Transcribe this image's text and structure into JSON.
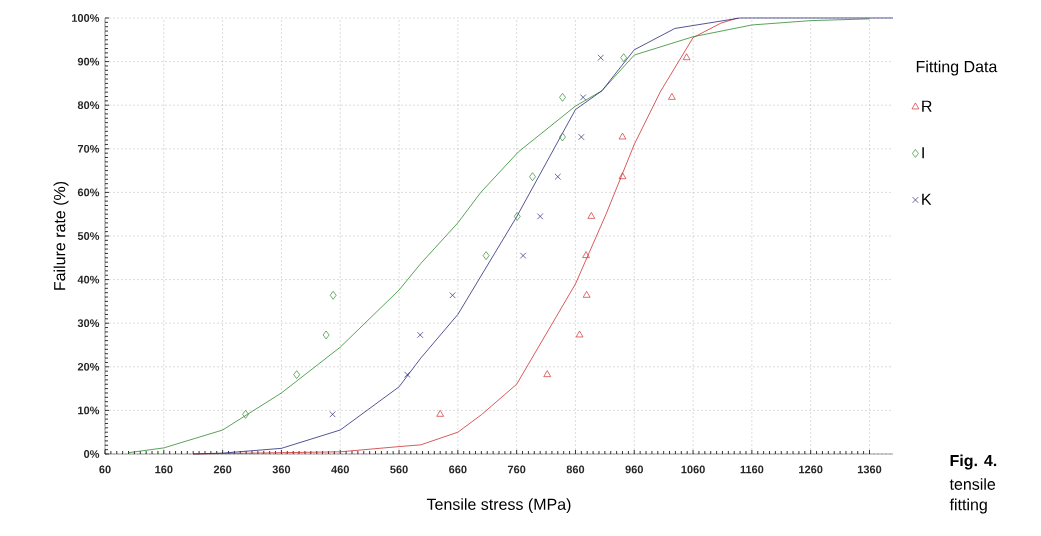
{
  "chart_data": {
    "type": "scatter",
    "xlabel": "Tensile stress (MPa)",
    "ylabel": "Failure rate (%)",
    "legend_title": "Fitting Data",
    "xlim": [
      60,
      1400
    ],
    "xticks": [
      60,
      160,
      260,
      360,
      460,
      560,
      660,
      760,
      860,
      960,
      1060,
      1160,
      1260,
      1360
    ],
    "ylim": [
      0,
      100
    ],
    "yticks": [
      {
        "value": 0,
        "label": "0%"
      },
      {
        "value": 10,
        "label": "10%"
      },
      {
        "value": 20,
        "label": "20%"
      },
      {
        "value": 30,
        "label": "30%"
      },
      {
        "value": 40,
        "label": "40%"
      },
      {
        "value": 50,
        "label": "50%"
      },
      {
        "value": 60,
        "label": "60%"
      },
      {
        "value": 70,
        "label": "70%"
      },
      {
        "value": 80,
        "label": "80%"
      },
      {
        "value": 90,
        "label": "90%"
      },
      {
        "value": 100,
        "label": "100%"
      }
    ],
    "grid": true,
    "legend": "right",
    "line_style": "solid",
    "series": [
      {
        "type": "line",
        "color": "#d03030",
        "marker": "none",
        "x": [
          210,
          460,
          560,
          597,
          660,
          700,
          760,
          860,
          912,
          960,
          1004,
          1060,
          1107,
          1136
        ],
        "values": [
          0,
          0.5,
          1.7,
          2.1,
          5,
          9,
          16,
          39,
          55,
          71,
          83,
          95.5,
          98.8,
          100
        ]
      },
      {
        "type": "line",
        "color": "#2e8b2e",
        "marker": "none",
        "x": [
          100,
          160,
          260,
          360,
          460,
          560,
          597,
          660,
          699,
          763,
          860,
          905,
          960,
          1060,
          1160,
          1260,
          1360
        ],
        "values": [
          0.3,
          1.4,
          5.5,
          14,
          24.5,
          37.6,
          43.7,
          53,
          60,
          69.3,
          79.8,
          83.3,
          91.5,
          95.7,
          98.4,
          99.4,
          99.8
        ]
      },
      {
        "type": "line",
        "color": "#2a2a7a",
        "marker": "none",
        "x": [
          210,
          260,
          360,
          460,
          560,
          597,
          660,
          760,
          860,
          905,
          960,
          1029,
          1140,
          1400
        ],
        "values": [
          0,
          0.2,
          1.3,
          5.5,
          15.4,
          22,
          32,
          54.4,
          79,
          83.3,
          92.7,
          97.6,
          100,
          100
        ]
      },
      {
        "name": "R",
        "color": "#d03030",
        "marker": "triangle",
        "x": [
          630,
          812,
          867,
          879,
          878,
          887,
          940,
          940,
          1024,
          1049
        ],
        "values": [
          9.1,
          18.2,
          27.3,
          36.4,
          45.5,
          54.5,
          63.6,
          72.7,
          81.8,
          90.9
        ]
      },
      {
        "name": "I",
        "color": "#2e8b2e",
        "marker": "diamond",
        "x": [
          299,
          386,
          436,
          448,
          708,
          761,
          787,
          838,
          838,
          942
        ],
        "values": [
          9.1,
          18.2,
          27.3,
          36.4,
          45.5,
          54.5,
          63.6,
          72.7,
          81.8,
          90.9
        ]
      },
      {
        "name": "K",
        "color": "#2a2a7a",
        "marker": "cross",
        "x": [
          447,
          574,
          596,
          651,
          771,
          800,
          830,
          870,
          873,
          903
        ],
        "values": [
          9.1,
          18.2,
          27.3,
          36.4,
          45.5,
          54.5,
          63.6,
          72.7,
          81.8,
          90.9
        ]
      }
    ],
    "annotations": [
      "**Fig. 4.**",
      "tensile",
      "fitting"
    ]
  }
}
